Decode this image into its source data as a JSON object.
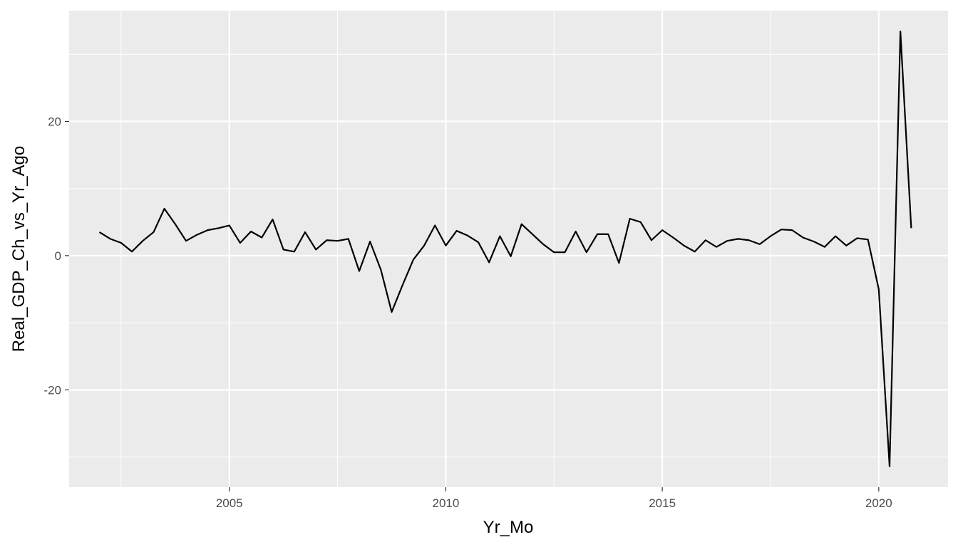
{
  "chart_data": {
    "type": "line",
    "title": "",
    "xlabel": "Yr_Mo",
    "ylabel": "Real_GDP_Ch_vs_Yr_Ago",
    "xlim": [
      2001.3,
      2021.6
    ],
    "ylim": [
      -34.5,
      36.5
    ],
    "x_ticks": [
      2005,
      2010,
      2015,
      2020
    ],
    "x_tick_labels": [
      "2005",
      "2010",
      "2015",
      "2020"
    ],
    "y_ticks": [
      -20,
      0,
      20
    ],
    "y_tick_labels": [
      "-20",
      "0",
      "20"
    ],
    "grid": true,
    "background": "#ebebeb",
    "grid_color": "#ffffff",
    "line_color": "#000000",
    "series": [
      {
        "x": [
          2002.0,
          2002.25,
          2002.5,
          2002.75,
          2003.0,
          2003.25,
          2003.5,
          2003.75,
          2004.0,
          2004.25,
          2004.5,
          2004.75,
          2005.0,
          2005.25,
          2005.5,
          2005.75,
          2006.0,
          2006.25,
          2006.5,
          2006.75,
          2007.0,
          2007.25,
          2007.5,
          2007.75,
          2008.0,
          2008.25,
          2008.5,
          2008.75,
          2009.0,
          2009.25,
          2009.5,
          2009.75,
          2010.0,
          2010.25,
          2010.5,
          2010.75,
          2011.0,
          2011.25,
          2011.5,
          2011.75,
          2012.0,
          2012.25,
          2012.5,
          2012.75,
          2013.0,
          2013.25,
          2013.5,
          2013.75,
          2014.0,
          2014.25,
          2014.5,
          2014.75,
          2015.0,
          2015.25,
          2015.5,
          2015.75,
          2016.0,
          2016.25,
          2016.5,
          2016.75,
          2017.0,
          2017.25,
          2017.5,
          2017.75,
          2018.0,
          2018.25,
          2018.5,
          2018.75,
          2019.0,
          2019.25,
          2019.5,
          2019.75,
          2020.0,
          2020.25,
          2020.5,
          2020.75
        ],
        "y": [
          3.5,
          2.5,
          1.9,
          0.6,
          2.2,
          3.5,
          7.0,
          4.7,
          2.2,
          3.1,
          3.8,
          4.1,
          4.5,
          1.9,
          3.6,
          2.7,
          5.4,
          0.9,
          0.6,
          3.5,
          0.9,
          2.3,
          2.2,
          2.5,
          -2.3,
          2.1,
          -2.1,
          -8.4,
          -4.4,
          -0.6,
          1.5,
          4.5,
          1.5,
          3.7,
          3.0,
          2.0,
          -1.0,
          2.9,
          -0.1,
          4.7,
          3.2,
          1.7,
          0.5,
          0.5,
          3.6,
          0.5,
          3.2,
          3.2,
          -1.1,
          5.5,
          5.0,
          2.3,
          3.8,
          2.7,
          1.5,
          0.6,
          2.3,
          1.3,
          2.2,
          2.5,
          2.3,
          1.7,
          2.9,
          3.9,
          3.8,
          2.7,
          2.1,
          1.3,
          2.9,
          1.5,
          2.6,
          2.4,
          -5.0,
          -31.4,
          33.4,
          4.1
        ]
      }
    ]
  }
}
